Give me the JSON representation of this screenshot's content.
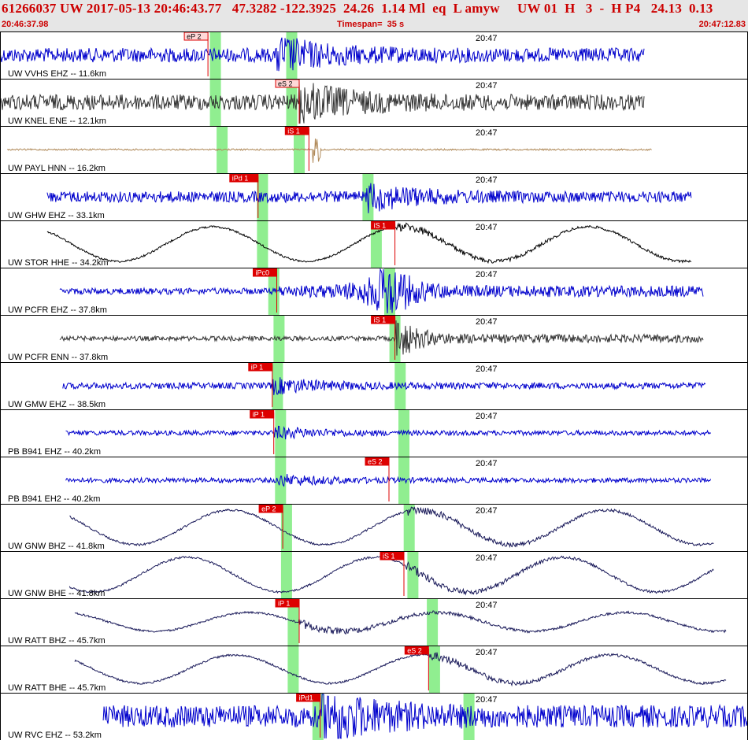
{
  "header": {
    "title": "61266037 UW 2017-05-13 20:46:43.77   47.3282 -122.3925  24.26  1.14 Ml  eq  L amyw     UW 01  H   3  -  H P4   24.13  0.13",
    "start_time": "20:46:37.98",
    "timespan": "Timespan=  35 s",
    "end_time": "20:47:12.83"
  },
  "minute_marker": "20:47",
  "colors": {
    "header_bg": "#e6e6e6",
    "header_text": "#cc0000",
    "pick": "#dd0000",
    "green_window": "#90ee90",
    "blue_trace": "#0000cc",
    "gray_trace": "#333333",
    "tan_trace": "#b08a5a",
    "black_trace": "#000000",
    "navy_trace": "#1a1a5a"
  },
  "traces": [
    {
      "station": "UW VVHS EHZ -- 11.6km",
      "color": "blue",
      "kind": "noise",
      "amp": 9,
      "start": 0.0,
      "end": 0.862,
      "arrival": 0.37,
      "picks": [
        {
          "label": "eP 2",
          "pos": 0.278,
          "style": "outline"
        }
      ],
      "windows": [
        0.288,
        0.39
      ]
    },
    {
      "station": "UW KNEL ENE -- 12.1km",
      "color": "gray",
      "kind": "noise",
      "amp": 10,
      "start": 0.0,
      "end": 0.862,
      "arrival": 0.4,
      "picks": [
        {
          "label": "eS 2",
          "pos": 0.4,
          "style": "outline"
        }
      ],
      "windows": [
        0.288,
        0.39
      ]
    },
    {
      "station": "UW PAYL HNN -- 16.2km",
      "color": "tan",
      "kind": "flat",
      "amp": 2,
      "start": 0.01,
      "end": 0.872,
      "arrival": 0.418,
      "picks": [
        {
          "label": "iS 1",
          "pos": 0.413,
          "style": "solid"
        }
      ],
      "windows": [
        0.297,
        0.4
      ]
    },
    {
      "station": "UW GHW EHZ -- 33.1km",
      "color": "blue",
      "kind": "noise",
      "amp": 7,
      "start": 0.063,
      "end": 0.925,
      "arrival": 0.49,
      "picks": [
        {
          "label": "iPd 1",
          "pos": 0.345,
          "style": "solid"
        }
      ],
      "windows": [
        0.351,
        0.492
      ]
    },
    {
      "station": "UW STOR HHE -- 34.2km",
      "color": "black",
      "kind": "wave",
      "amp": 22,
      "start": 0.063,
      "end": 0.925,
      "arrival": 0.53,
      "picks": [
        {
          "label": "iS 1",
          "pos": 0.528,
          "style": "solid"
        }
      ],
      "windows": [
        0.351,
        0.503
      ]
    },
    {
      "station": "UW PCFR EHZ -- 37.8km",
      "color": "blue",
      "kind": "burst",
      "amp": 4,
      "start": 0.08,
      "end": 0.94,
      "arrival": 0.37,
      "picks": [
        {
          "label": "iPc0",
          "pos": 0.37,
          "style": "solid"
        }
      ],
      "windows": [
        0.366,
        0.521
      ]
    },
    {
      "station": "UW PCFR ENN -- 37.8km",
      "color": "gray",
      "kind": "burst",
      "amp": 3,
      "start": 0.08,
      "end": 0.94,
      "arrival": 0.528,
      "picks": [
        {
          "label": "iS 1",
          "pos": 0.528,
          "style": "solid"
        }
      ],
      "windows": [
        0.373,
        0.528
      ]
    },
    {
      "station": "UW GMW EHZ -- 38.5km",
      "color": "blue",
      "kind": "noise",
      "amp": 4,
      "start": 0.084,
      "end": 0.943,
      "arrival": 0.364,
      "picks": [
        {
          "label": "iP 1",
          "pos": 0.364,
          "style": "solid"
        }
      ],
      "windows": [
        0.371,
        0.535
      ]
    },
    {
      "station": "PB B941 EHZ -- 40.2km",
      "color": "blue",
      "kind": "noise",
      "amp": 3,
      "start": 0.088,
      "end": 0.951,
      "arrival": 0.366,
      "picks": [
        {
          "label": "iP 1",
          "pos": 0.366,
          "style": "solid"
        }
      ],
      "windows": [
        0.375,
        0.54
      ]
    },
    {
      "station": "PB B941 EH2 -- 40.2km",
      "color": "blue",
      "kind": "noise",
      "amp": 3,
      "start": 0.088,
      "end": 0.951,
      "arrival": 0.37,
      "picks": [
        {
          "label": "eS 2",
          "pos": 0.52,
          "style": "solid"
        }
      ],
      "windows": [
        0.375,
        0.54
      ]
    },
    {
      "station": "UW GNW BHZ -- 41.8km",
      "color": "navy",
      "kind": "wave",
      "amp": 22,
      "start": 0.093,
      "end": 0.955,
      "arrival": 0.543,
      "picks": [
        {
          "label": "eP 2",
          "pos": 0.378,
          "style": "solid"
        }
      ],
      "windows": [
        0.383,
        0.547
      ]
    },
    {
      "station": "UW GNW BHE -- 41.8km",
      "color": "navy",
      "kind": "wave",
      "amp": 22,
      "start": 0.093,
      "end": 0.955,
      "arrival": 0.543,
      "picks": [
        {
          "label": "iS 1",
          "pos": 0.54,
          "style": "solid"
        }
      ],
      "windows": [
        0.383,
        0.552
      ]
    },
    {
      "station": "UW RATT BHZ -- 45.7km",
      "color": "navy",
      "kind": "wave",
      "amp": 12,
      "start": 0.1,
      "end": 0.971,
      "arrival": 0.4,
      "picks": [
        {
          "label": "iP 1",
          "pos": 0.4,
          "style": "solid"
        }
      ],
      "windows": [
        0.392,
        0.578
      ]
    },
    {
      "station": "UW RATT BHE -- 45.7km",
      "color": "navy",
      "kind": "wave",
      "amp": 18,
      "start": 0.1,
      "end": 0.971,
      "arrival": 0.574,
      "picks": [
        {
          "label": "eS 2",
          "pos": 0.573,
          "style": "solid"
        }
      ],
      "windows": [
        0.392,
        0.581
      ]
    },
    {
      "station": "UW RVC EHZ -- 53.2km",
      "color": "blue",
      "kind": "noise",
      "amp": 14,
      "start": 0.138,
      "end": 1.0,
      "arrival": 0.43,
      "picks": [
        {
          "label": "iPd1",
          "pos": 0.428,
          "style": "solid"
        }
      ],
      "windows": [
        0.425,
        0.627
      ]
    }
  ]
}
